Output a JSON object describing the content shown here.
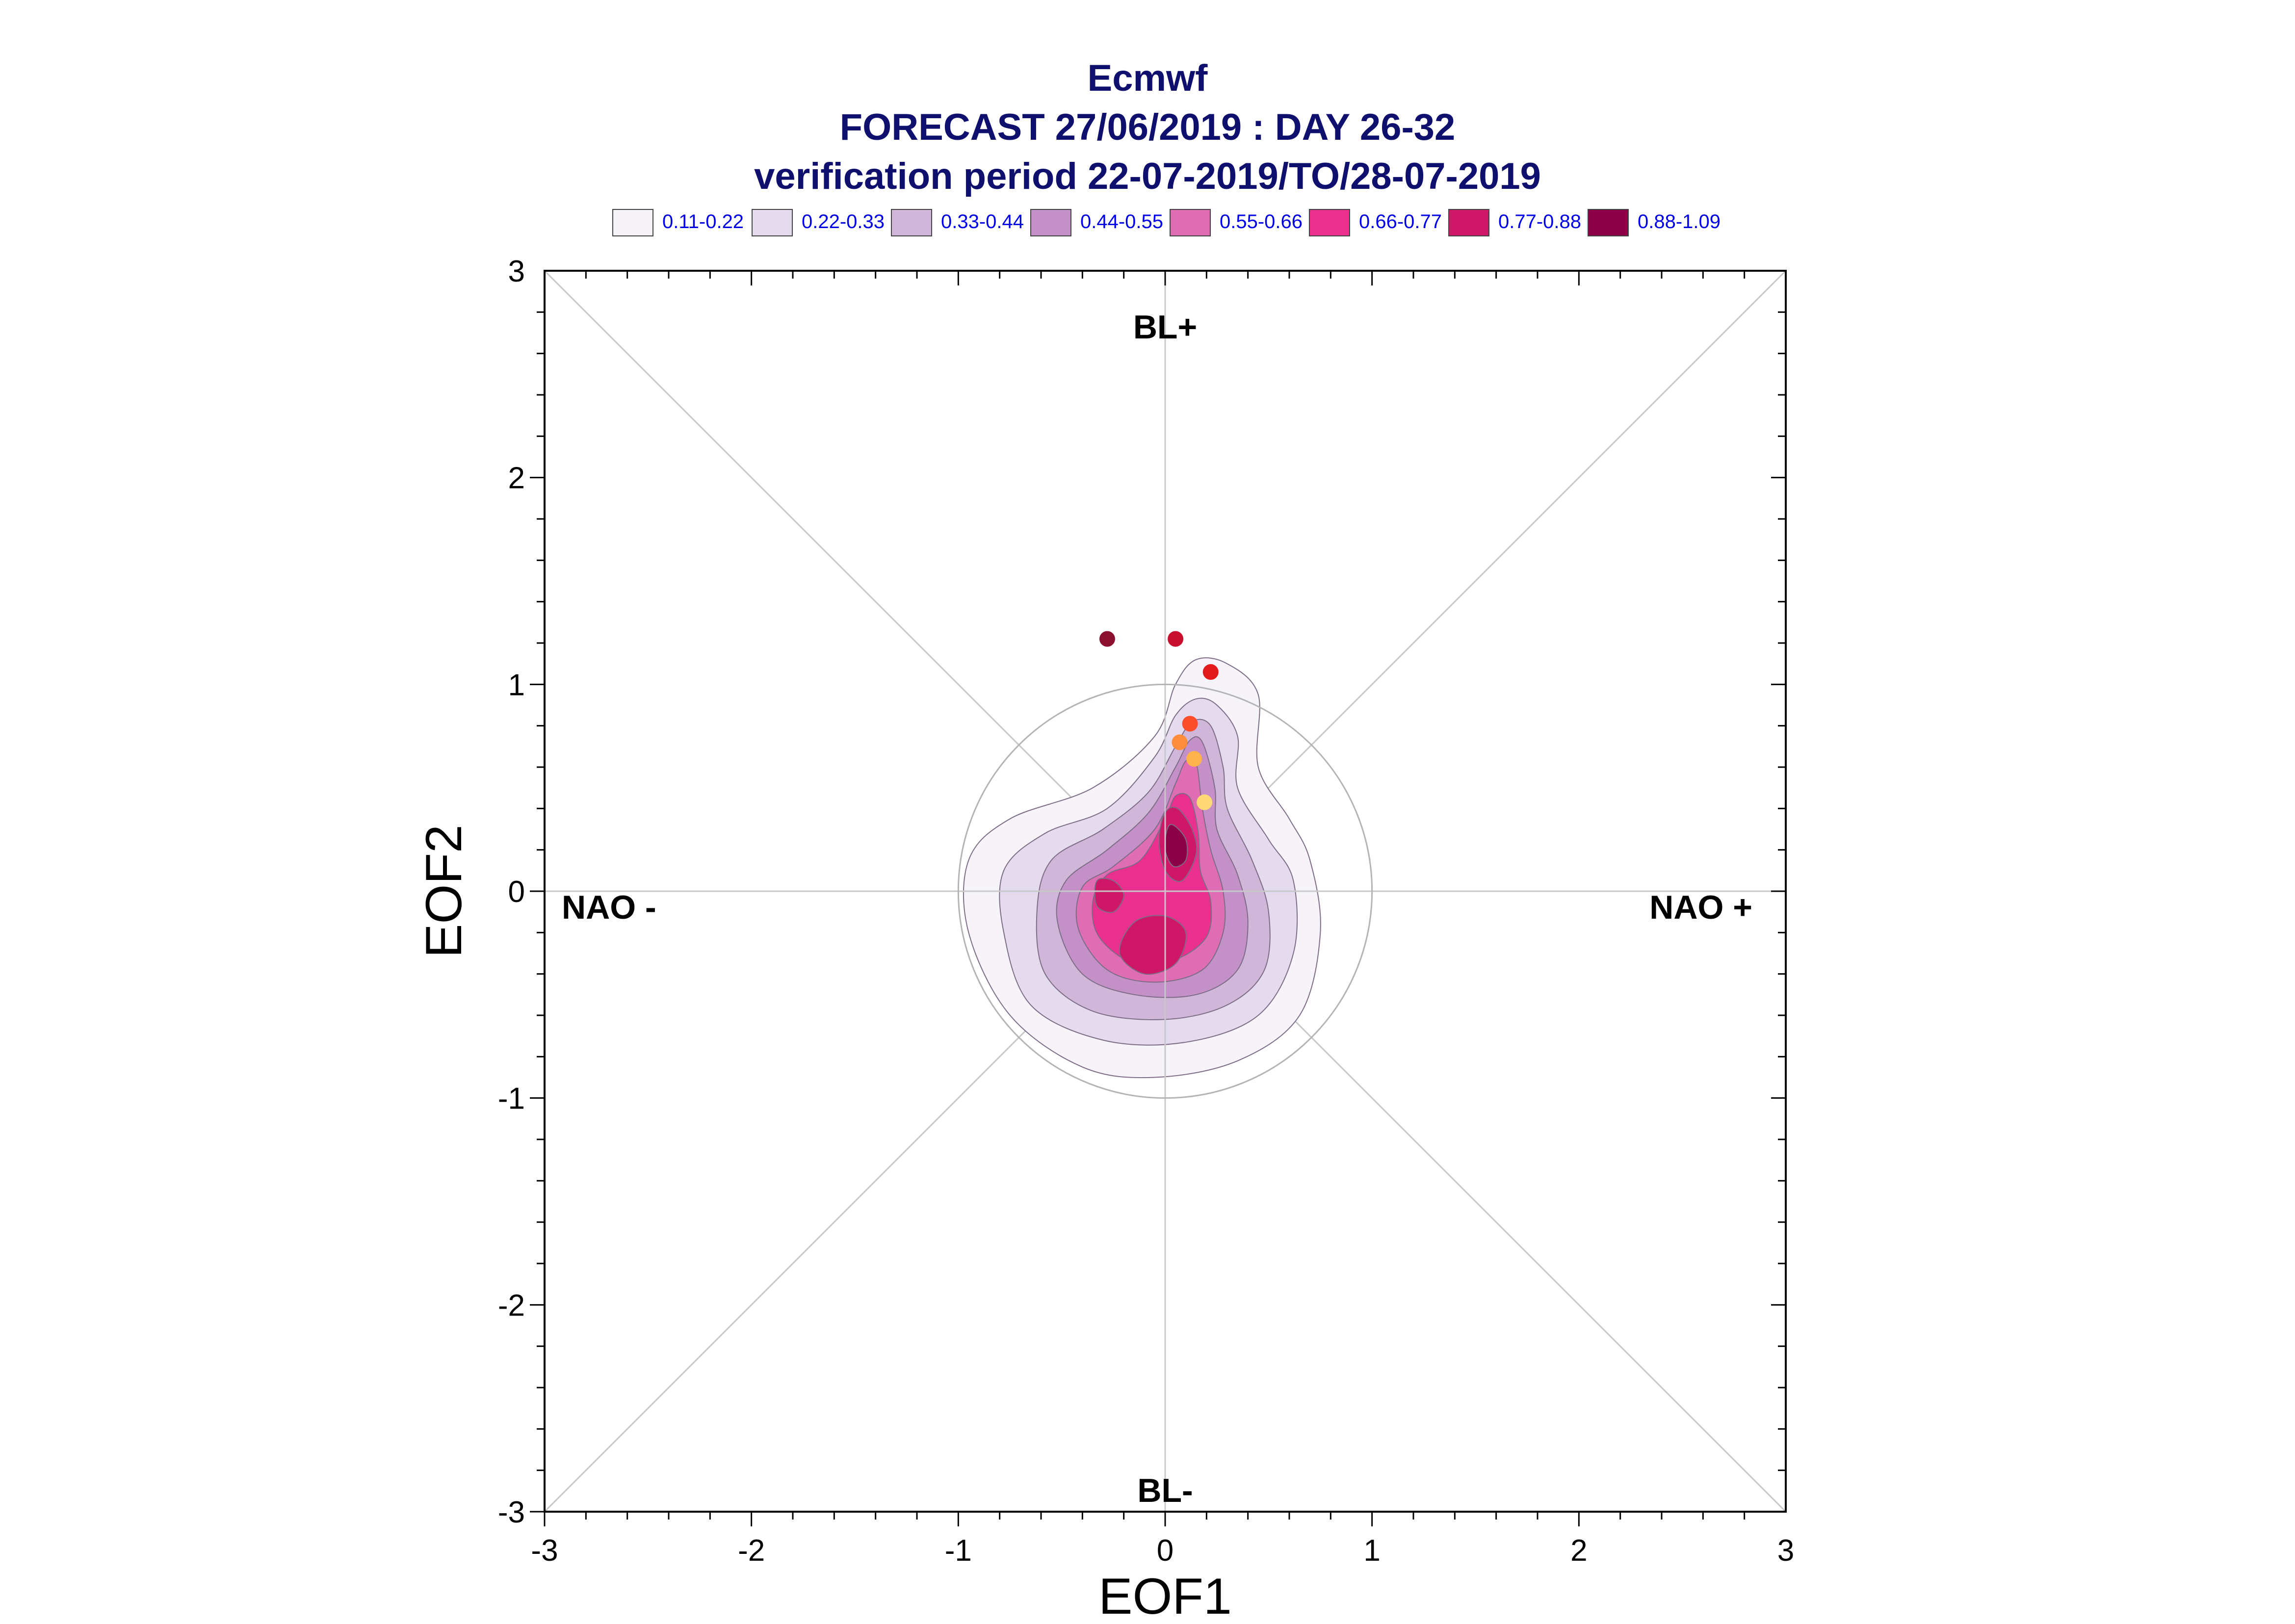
{
  "header": {
    "line1": "Ecmwf",
    "line2": "FORECAST 27/06/2019 : DAY 26-32",
    "line3": "verification period 22-07-2019/TO/28-07-2019"
  },
  "legend": [
    {
      "label": "0.11-0.22",
      "color": "#f6f3f9"
    },
    {
      "label": "0.22-0.33",
      "color": "#e4dcee"
    },
    {
      "label": "0.33-0.44",
      "color": "#d0b6d9"
    },
    {
      "label": "0.44-0.55",
      "color": "#c390c8"
    },
    {
      "label": "0.55-0.66",
      "color": "#de6db4"
    },
    {
      "label": "0.66-0.77",
      "color": "#e9308e"
    },
    {
      "label": "0.77-0.88",
      "color": "#cf1768"
    },
    {
      "label": "0.88-1.09",
      "color": "#8b0047"
    }
  ],
  "regime_labels": {
    "top": "BL+",
    "bottom": "BL-",
    "left": "NAO -",
    "right": "NAO +"
  },
  "chart_data": {
    "type": "scatter",
    "title": "Ecmwf FORECAST 27/06/2019 : DAY 26-32",
    "subtitle": "verification period 22-07-2019/TO/28-07-2019",
    "xlabel": "EOF1",
    "ylabel": "EOF2",
    "xlim": [
      -3,
      3
    ],
    "ylim": [
      -3,
      3
    ],
    "xticks": [
      "-3",
      "-2",
      "-1",
      "0",
      "1",
      "2",
      "3"
    ],
    "yticks": [
      "-3",
      "-2",
      "-1",
      "0",
      "1",
      "2",
      "3"
    ],
    "reference_circle_radius": 1,
    "points": [
      {
        "x": -0.28,
        "y": 1.22,
        "color": "#8b0f2e"
      },
      {
        "x": 0.05,
        "y": 1.22,
        "color": "#c8102e"
      },
      {
        "x": 0.22,
        "y": 1.06,
        "color": "#e31a1c"
      },
      {
        "x": 0.12,
        "y": 0.81,
        "color": "#fc4e2a"
      },
      {
        "x": 0.07,
        "y": 0.72,
        "color": "#fd8d3c"
      },
      {
        "x": 0.14,
        "y": 0.64,
        "color": "#feb24c"
      },
      {
        "x": 0.19,
        "y": 0.43,
        "color": "#fed976"
      }
    ],
    "density_levels": [
      {
        "range": "0.11-0.22",
        "outline": [
          [
            0.3,
            1.1
          ],
          [
            0.45,
            0.95
          ],
          [
            0.45,
            0.6
          ],
          [
            0.6,
            0.35
          ],
          [
            0.7,
            0.15
          ],
          [
            0.75,
            -0.2
          ],
          [
            0.65,
            -0.6
          ],
          [
            0.35,
            -0.82
          ],
          [
            -0.05,
            -0.9
          ],
          [
            -0.4,
            -0.85
          ],
          [
            -0.75,
            -0.6
          ],
          [
            -0.95,
            -0.2
          ],
          [
            -0.95,
            0.15
          ],
          [
            -0.75,
            0.35
          ],
          [
            -0.35,
            0.5
          ],
          [
            -0.05,
            0.75
          ],
          [
            0.05,
            1.0
          ],
          [
            0.15,
            1.12
          ]
        ]
      },
      {
        "range": "0.22-0.33",
        "outline": [
          [
            0.25,
            0.9
          ],
          [
            0.35,
            0.75
          ],
          [
            0.35,
            0.5
          ],
          [
            0.5,
            0.25
          ],
          [
            0.62,
            0.05
          ],
          [
            0.62,
            -0.3
          ],
          [
            0.45,
            -0.6
          ],
          [
            0.1,
            -0.73
          ],
          [
            -0.3,
            -0.72
          ],
          [
            -0.65,
            -0.55
          ],
          [
            -0.78,
            -0.2
          ],
          [
            -0.78,
            0.1
          ],
          [
            -0.58,
            0.28
          ],
          [
            -0.28,
            0.4
          ],
          [
            -0.05,
            0.65
          ],
          [
            0.05,
            0.85
          ],
          [
            0.15,
            0.93
          ]
        ]
      },
      {
        "range": "0.33-0.44",
        "outline": [
          [
            0.22,
            0.8
          ],
          [
            0.28,
            0.6
          ],
          [
            0.3,
            0.4
          ],
          [
            0.42,
            0.15
          ],
          [
            0.5,
            -0.1
          ],
          [
            0.48,
            -0.38
          ],
          [
            0.3,
            -0.55
          ],
          [
            0.0,
            -0.62
          ],
          [
            -0.35,
            -0.58
          ],
          [
            -0.58,
            -0.4
          ],
          [
            -0.62,
            -0.1
          ],
          [
            -0.55,
            0.15
          ],
          [
            -0.3,
            0.3
          ],
          [
            -0.08,
            0.48
          ],
          [
            0.05,
            0.7
          ],
          [
            0.13,
            0.82
          ]
        ]
      },
      {
        "range": "0.44-0.55",
        "outline": [
          [
            0.18,
            0.72
          ],
          [
            0.24,
            0.5
          ],
          [
            0.25,
            0.3
          ],
          [
            0.35,
            0.08
          ],
          [
            0.4,
            -0.15
          ],
          [
            0.35,
            -0.38
          ],
          [
            0.15,
            -0.5
          ],
          [
            -0.15,
            -0.5
          ],
          [
            -0.4,
            -0.4
          ],
          [
            -0.52,
            -0.15
          ],
          [
            -0.48,
            0.05
          ],
          [
            -0.28,
            0.2
          ],
          [
            -0.08,
            0.38
          ],
          [
            0.05,
            0.6
          ],
          [
            0.12,
            0.73
          ]
        ]
      },
      {
        "range": "0.55-0.66",
        "outline": [
          [
            0.15,
            0.62
          ],
          [
            0.18,
            0.4
          ],
          [
            0.22,
            0.2
          ],
          [
            0.28,
            0.0
          ],
          [
            0.28,
            -0.2
          ],
          [
            0.18,
            -0.38
          ],
          [
            -0.05,
            -0.44
          ],
          [
            -0.28,
            -0.38
          ],
          [
            -0.42,
            -0.18
          ],
          [
            -0.4,
            0.02
          ],
          [
            -0.25,
            0.12
          ],
          [
            -0.05,
            0.3
          ],
          [
            0.05,
            0.52
          ],
          [
            0.1,
            0.63
          ]
        ]
      },
      {
        "range": "0.66-0.77",
        "outline": [
          [
            0.12,
            0.45
          ],
          [
            0.16,
            0.28
          ],
          [
            0.17,
            0.1
          ],
          [
            0.22,
            -0.05
          ],
          [
            0.2,
            -0.22
          ],
          [
            0.05,
            -0.33
          ],
          [
            -0.15,
            -0.35
          ],
          [
            -0.32,
            -0.22
          ],
          [
            -0.35,
            -0.05
          ],
          [
            -0.28,
            0.08
          ],
          [
            -0.12,
            0.15
          ],
          [
            0.0,
            0.35
          ],
          [
            0.05,
            0.46
          ]
        ]
      },
      {
        "range": "0.77-0.88",
        "outline": [
          [
            0.06,
            0.4
          ],
          [
            0.13,
            0.3
          ],
          [
            0.15,
            0.18
          ],
          [
            0.08,
            0.05
          ],
          [
            0.0,
            0.1
          ],
          [
            -0.03,
            0.25
          ],
          [
            0.0,
            0.38
          ]
        ]
      },
      {
        "range": "0.88-1.09",
        "outline": [
          [
            0.04,
            0.32
          ],
          [
            0.1,
            0.25
          ],
          [
            0.1,
            0.15
          ],
          [
            0.04,
            0.12
          ],
          [
            0.0,
            0.2
          ],
          [
            0.01,
            0.3
          ]
        ]
      }
    ],
    "secondary_maxima": [
      {
        "range": "0.77-0.88",
        "outline": [
          [
            -0.15,
            -0.15
          ],
          [
            0.0,
            -0.12
          ],
          [
            0.1,
            -0.2
          ],
          [
            0.05,
            -0.35
          ],
          [
            -0.1,
            -0.4
          ],
          [
            -0.22,
            -0.3
          ]
        ]
      },
      {
        "range": "0.77-0.88",
        "outline": [
          [
            -0.33,
            0.05
          ],
          [
            -0.25,
            0.05
          ],
          [
            -0.2,
            -0.02
          ],
          [
            -0.25,
            -0.1
          ],
          [
            -0.33,
            -0.07
          ]
        ]
      }
    ],
    "grid": false,
    "legend_position": "top"
  }
}
